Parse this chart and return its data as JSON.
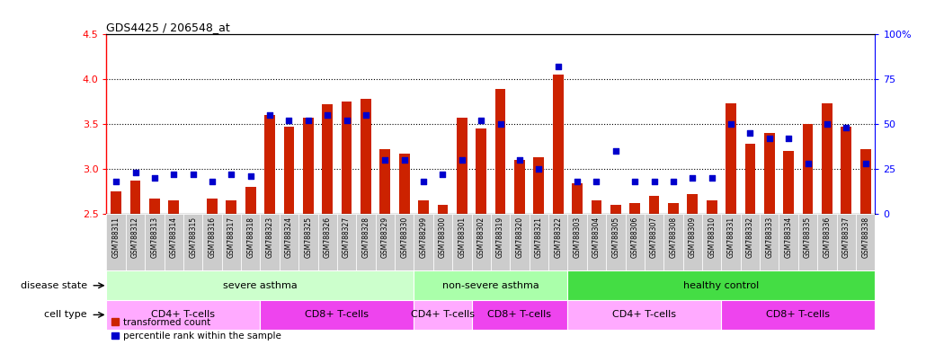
{
  "title": "GDS4425 / 206548_at",
  "samples": [
    "GSM788311",
    "GSM788312",
    "GSM788313",
    "GSM788314",
    "GSM788315",
    "GSM788316",
    "GSM788317",
    "GSM788318",
    "GSM788323",
    "GSM788324",
    "GSM788325",
    "GSM788326",
    "GSM788327",
    "GSM788328",
    "GSM788329",
    "GSM788330",
    "GSM788299",
    "GSM788300",
    "GSM788301",
    "GSM788302",
    "GSM788319",
    "GSM788320",
    "GSM788321",
    "GSM788322",
    "GSM788303",
    "GSM788304",
    "GSM788305",
    "GSM788306",
    "GSM788307",
    "GSM788308",
    "GSM788309",
    "GSM788310",
    "GSM788331",
    "GSM788332",
    "GSM788333",
    "GSM788334",
    "GSM788335",
    "GSM788336",
    "GSM788337",
    "GSM788338"
  ],
  "bar_values": [
    2.75,
    2.87,
    2.67,
    2.65,
    2.5,
    2.67,
    2.65,
    2.8,
    3.6,
    3.47,
    3.57,
    3.72,
    3.75,
    3.78,
    3.22,
    3.17,
    2.65,
    2.6,
    3.57,
    3.45,
    3.89,
    3.1,
    3.13,
    4.05,
    2.84,
    2.65,
    2.6,
    2.62,
    2.7,
    2.62,
    2.72,
    2.65,
    3.73,
    3.28,
    3.4,
    3.2,
    3.5,
    3.73,
    3.47,
    3.22
  ],
  "percentile_values": [
    18,
    23,
    20,
    22,
    22,
    18,
    22,
    21,
    55,
    52,
    52,
    55,
    52,
    55,
    30,
    30,
    18,
    22,
    30,
    52,
    50,
    30,
    25,
    82,
    18,
    18,
    35,
    18,
    18,
    18,
    20,
    20,
    50,
    45,
    42,
    42,
    28,
    50,
    48,
    28
  ],
  "ymin": 2.5,
  "ymax": 4.5,
  "yticks": [
    2.5,
    3.0,
    3.5,
    4.0,
    4.5
  ],
  "right_yticks": [
    0,
    25,
    50,
    75,
    100
  ],
  "bar_color": "#CC2200",
  "dot_color": "#0000CC",
  "disease_state_groups": [
    {
      "label": "severe asthma",
      "start": 0,
      "end": 15,
      "color": "#CCFFCC"
    },
    {
      "label": "non-severe asthma",
      "start": 16,
      "end": 23,
      "color": "#AAFFAA"
    },
    {
      "label": "healthy control",
      "start": 24,
      "end": 39,
      "color": "#44DD44"
    }
  ],
  "cell_type_groups": [
    {
      "label": "CD4+ T-cells",
      "start": 0,
      "end": 7,
      "color": "#FFAAFF"
    },
    {
      "label": "CD8+ T-cells",
      "start": 8,
      "end": 15,
      "color": "#EE44EE"
    },
    {
      "label": "CD4+ T-cells",
      "start": 16,
      "end": 18,
      "color": "#FFAAFF"
    },
    {
      "label": "CD8+ T-cells",
      "start": 19,
      "end": 23,
      "color": "#EE44EE"
    },
    {
      "label": "CD4+ T-cells",
      "start": 24,
      "end": 31,
      "color": "#FFAAFF"
    },
    {
      "label": "CD8+ T-cells",
      "start": 32,
      "end": 39,
      "color": "#EE44EE"
    }
  ]
}
